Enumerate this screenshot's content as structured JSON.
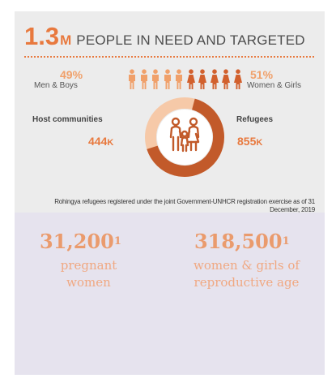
{
  "header": {
    "number": "1.3",
    "unit": "M",
    "text": "PEOPLE IN NEED AND TARGETED"
  },
  "gender": {
    "men_boys_percent": "49%",
    "men_boys_label": "Men & Boys",
    "women_girls_percent": "51%",
    "women_girls_label": "Women & Girls",
    "men_boys_share": 0.49,
    "women_girls_share": 0.51
  },
  "groups": {
    "host_label": "Host communities",
    "host_value": "444",
    "host_unit": "K",
    "refugee_label": "Refugees",
    "refugee_value": "855",
    "refugee_unit": "K",
    "host_share": 444,
    "refugee_share": 855
  },
  "footnote": "Rohingya refugees registered under the joint Government-UNHCR registration exercise as of 31 December, 2019",
  "stats": {
    "pregnant_number": "31,200",
    "pregnant_sup": "1",
    "pregnant_label_line1": "pregnant",
    "pregnant_label_line2": "women",
    "women_number": "318,500",
    "women_sup": "1",
    "women_label_line1": "women & girls of",
    "women_label_line2": "reproductive age"
  },
  "colors": {
    "accent": "#e8793e",
    "dark_orange": "#c25a2a",
    "light_orange": "#f6c9a8",
    "male_icon": "#f0a06a",
    "female_icon": "#d2602d",
    "top_background": "#ececec",
    "bottom_background": "#e6e3ee"
  },
  "icons": {
    "people_row": "person-icon",
    "donut_center": "family-icon"
  }
}
